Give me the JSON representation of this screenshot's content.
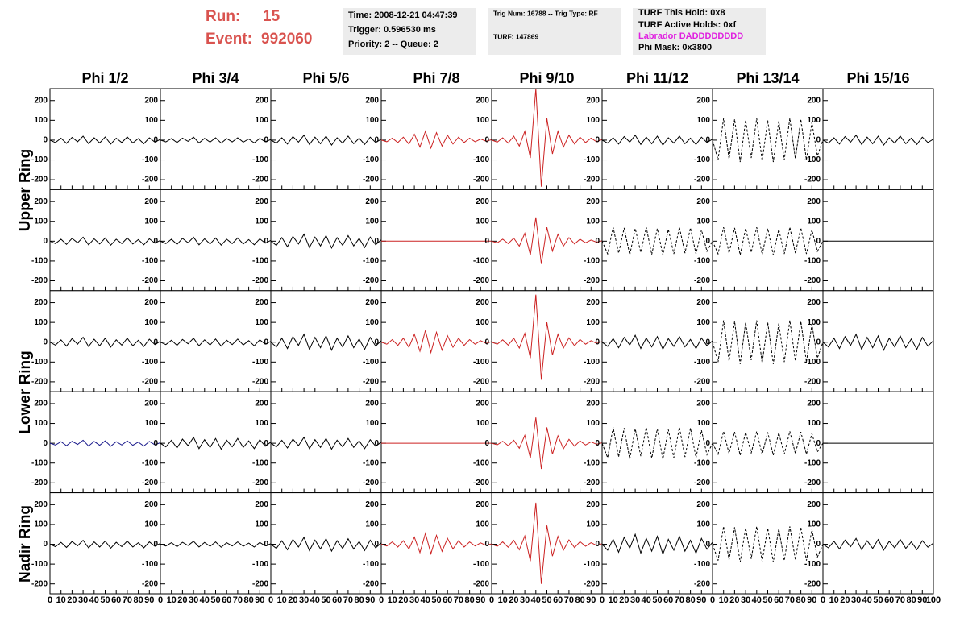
{
  "header": {
    "run_label": "Run:",
    "run": 15,
    "event_label": "Event:",
    "event": 992060,
    "box1": [
      "Time: 2008-12-21 04:47:39",
      "Trigger: 0.596530 ms",
      "Priority: 2 -- Queue: 2"
    ],
    "box2": [
      "Trig Num: 16788 -- Trig Type: RF",
      "TURF: 147869"
    ],
    "box3": [
      "TURF This Hold: 0x8",
      "TURF Active Holds: 0xf",
      "Labrador DADDDDDDDD",
      "Phi Mask: 0x3800"
    ]
  },
  "row_labels": [
    "Upper Ring",
    "Lower Ring",
    "Nadir Ring"
  ],
  "chart_data": {
    "type": "waveform-grid",
    "columns": [
      "Phi 1/2",
      "Phi 3/4",
      "Phi 5/6",
      "Phi 7/8",
      "Phi 9/10",
      "Phi 11/12",
      "Phi 13/14",
      "Phi 15/16"
    ],
    "xlim": [
      0,
      100
    ],
    "ylim": [
      -250,
      260
    ],
    "xticks": [
      0,
      10,
      20,
      30,
      40,
      50,
      60,
      70,
      80,
      90,
      100
    ],
    "yticks": [
      -200,
      -100,
      0,
      100,
      200
    ],
    "x": [
      0,
      5,
      10,
      15,
      20,
      25,
      30,
      35,
      40,
      45,
      50,
      55,
      60,
      65,
      70,
      75,
      80,
      85,
      90,
      95,
      100
    ],
    "panels": [
      {
        "color": "#000000",
        "dashed": false,
        "values": [
          0,
          -12,
          10,
          -16,
          14,
          -8,
          20,
          -18,
          12,
          -14,
          16,
          -20,
          10,
          -12,
          16,
          -14,
          8,
          -18,
          12,
          -10,
          4
        ]
      },
      {
        "color": "#000000",
        "dashed": false,
        "values": [
          0,
          -9,
          8,
          -12,
          10,
          -6,
          15,
          -14,
          9,
          -10,
          12,
          -15,
          8,
          -9,
          12,
          -10,
          6,
          -14,
          9,
          -8,
          3
        ]
      },
      {
        "color": "#000000",
        "dashed": false,
        "values": [
          0,
          -15,
          12,
          -20,
          18,
          -10,
          25,
          -22,
          15,
          -18,
          20,
          -25,
          12,
          -15,
          20,
          -18,
          10,
          -22,
          15,
          -12,
          5
        ]
      },
      {
        "color": "#cc2222",
        "dashed": false,
        "values": [
          0,
          -8,
          10,
          -12,
          15,
          -20,
          30,
          -35,
          45,
          -40,
          38,
          -30,
          25,
          -20,
          15,
          -12,
          10,
          -8,
          6,
          -5,
          2
        ]
      },
      {
        "color": "#cc2222",
        "dashed": false,
        "values": [
          0,
          -10,
          12,
          -15,
          20,
          -30,
          45,
          -90,
          260,
          -235,
          110,
          -70,
          45,
          -35,
          25,
          -20,
          15,
          -12,
          10,
          -8,
          3
        ]
      },
      {
        "color": "#000000",
        "dashed": false,
        "values": [
          0,
          -15,
          12,
          -20,
          18,
          -10,
          25,
          -22,
          15,
          -18,
          20,
          -25,
          12,
          -15,
          20,
          -18,
          10,
          -22,
          15,
          -12,
          5
        ]
      },
      {
        "color": "#000000",
        "dashed": true,
        "values": [
          0,
          -100,
          110,
          -95,
          105,
          -110,
          100,
          -90,
          110,
          -105,
          100,
          -110,
          95,
          -100,
          110,
          -95,
          105,
          -100,
          90,
          -80,
          0
        ]
      },
      {
        "color": "#000000",
        "dashed": false,
        "values": [
          0,
          -15,
          12,
          -20,
          18,
          -10,
          25,
          -22,
          15,
          -18,
          20,
          -25,
          12,
          -15,
          20,
          -18,
          10,
          -22,
          15,
          -12,
          5
        ]
      },
      {
        "color": "#000000",
        "dashed": false,
        "values": [
          0,
          -12,
          10,
          -16,
          14,
          -8,
          20,
          -18,
          12,
          -14,
          16,
          -20,
          10,
          -12,
          16,
          -14,
          8,
          -18,
          12,
          -10,
          4
        ]
      },
      {
        "color": "#000000",
        "dashed": false,
        "values": [
          0,
          -12,
          10,
          -16,
          14,
          -8,
          20,
          -18,
          12,
          -14,
          16,
          -20,
          10,
          -12,
          16,
          -14,
          8,
          -18,
          12,
          -10,
          4
        ]
      },
      {
        "color": "#000000",
        "dashed": false,
        "values": [
          0,
          -21,
          18,
          -28,
          24,
          -14,
          35,
          -32,
          21,
          -24,
          28,
          -35,
          18,
          -21,
          28,
          -24,
          14,
          -32,
          21,
          -18,
          7
        ]
      },
      {
        "color": "#cc2222",
        "dashed": false,
        "values": [
          0,
          0,
          0,
          0,
          0,
          0,
          0,
          0,
          0,
          0,
          0,
          0,
          0,
          0,
          0,
          0,
          0,
          0,
          0,
          0,
          0
        ]
      },
      {
        "color": "#cc2222",
        "dashed": false,
        "values": [
          0,
          -8,
          10,
          -12,
          15,
          -25,
          40,
          -70,
          120,
          -115,
          70,
          -50,
          35,
          -25,
          18,
          -14,
          10,
          -8,
          6,
          -5,
          2
        ]
      },
      {
        "color": "#000000",
        "dashed": true,
        "values": [
          0,
          -64,
          70,
          -60,
          67,
          -70,
          64,
          -57,
          70,
          -67,
          64,
          -70,
          60,
          -64,
          70,
          -60,
          67,
          -64,
          57,
          -51,
          0
        ]
      },
      {
        "color": "#000000",
        "dashed": true,
        "values": [
          0,
          -64,
          70,
          -60,
          67,
          -70,
          64,
          -57,
          70,
          -67,
          64,
          -70,
          60,
          -64,
          70,
          -60,
          67,
          -64,
          57,
          -51,
          0
        ]
      },
      {
        "color": "#000000",
        "dashed": false,
        "values": [
          0,
          0,
          0,
          0,
          0,
          0,
          0,
          0,
          0,
          0,
          0,
          0,
          0,
          0,
          0,
          0,
          0,
          0,
          0,
          0,
          0
        ]
      },
      {
        "color": "#000000",
        "dashed": false,
        "values": [
          0,
          -15,
          12,
          -20,
          18,
          -10,
          25,
          -22,
          15,
          -18,
          20,
          -25,
          12,
          -15,
          20,
          -18,
          10,
          -22,
          15,
          -12,
          5
        ]
      },
      {
        "color": "#000000",
        "dashed": false,
        "values": [
          0,
          -12,
          10,
          -16,
          14,
          -8,
          20,
          -18,
          12,
          -14,
          16,
          -20,
          10,
          -12,
          16,
          -14,
          8,
          -18,
          12,
          -10,
          4
        ]
      },
      {
        "color": "#000000",
        "dashed": false,
        "values": [
          0,
          -24,
          20,
          -32,
          28,
          -16,
          40,
          -36,
          24,
          -28,
          32,
          -40,
          20,
          -24,
          32,
          -28,
          16,
          -36,
          24,
          -20,
          8
        ]
      },
      {
        "color": "#cc2222",
        "dashed": false,
        "values": [
          0,
          -10,
          13,
          -16,
          20,
          -26,
          40,
          -46,
          60,
          -52,
          50,
          -40,
          33,
          -26,
          20,
          -16,
          13,
          -10,
          8,
          -6,
          3
        ]
      },
      {
        "color": "#cc2222",
        "dashed": false,
        "values": [
          0,
          -10,
          12,
          -15,
          20,
          -30,
          45,
          -80,
          240,
          -190,
          100,
          -65,
          40,
          -30,
          22,
          -18,
          14,
          -10,
          8,
          -6,
          3
        ]
      },
      {
        "color": "#000000",
        "dashed": false,
        "values": [
          0,
          -21,
          18,
          -28,
          24,
          -14,
          35,
          -32,
          21,
          -24,
          28,
          -35,
          18,
          -21,
          28,
          -24,
          14,
          -32,
          21,
          -18,
          7
        ]
      },
      {
        "color": "#000000",
        "dashed": true,
        "values": [
          0,
          -100,
          110,
          -95,
          105,
          -110,
          100,
          -90,
          110,
          -105,
          100,
          -110,
          95,
          -100,
          110,
          -95,
          105,
          -100,
          90,
          -80,
          0
        ]
      },
      {
        "color": "#000000",
        "dashed": false,
        "values": [
          0,
          -24,
          20,
          -32,
          28,
          -16,
          40,
          -36,
          24,
          -28,
          32,
          -40,
          20,
          -24,
          32,
          -28,
          16,
          -36,
          24,
          -20,
          8
        ]
      },
      {
        "color": "#1a1a8c",
        "dashed": false,
        "values": [
          0,
          -9,
          8,
          -12,
          10,
          -6,
          15,
          -14,
          9,
          -10,
          12,
          -15,
          8,
          -9,
          12,
          -10,
          6,
          -14,
          9,
          -8,
          3
        ]
      },
      {
        "color": "#000000",
        "dashed": false,
        "values": [
          0,
          -18,
          15,
          -24,
          21,
          -12,
          30,
          -27,
          18,
          -21,
          24,
          -30,
          15,
          -18,
          24,
          -21,
          12,
          -27,
          18,
          -15,
          6
        ]
      },
      {
        "color": "#000000",
        "dashed": false,
        "values": [
          0,
          -18,
          15,
          -24,
          21,
          -12,
          30,
          -27,
          18,
          -21,
          24,
          -30,
          15,
          -18,
          24,
          -21,
          12,
          -27,
          18,
          -15,
          6
        ]
      },
      {
        "color": "#cc2222",
        "dashed": false,
        "values": [
          0,
          0,
          0,
          0,
          0,
          0,
          0,
          0,
          0,
          0,
          0,
          0,
          0,
          0,
          0,
          0,
          0,
          0,
          0,
          0,
          0
        ]
      },
      {
        "color": "#cc2222",
        "dashed": false,
        "values": [
          0,
          -8,
          10,
          -12,
          15,
          -25,
          40,
          -75,
          130,
          -130,
          80,
          -55,
          38,
          -28,
          20,
          -15,
          12,
          -9,
          7,
          -5,
          2
        ]
      },
      {
        "color": "#000000",
        "dashed": true,
        "values": [
          0,
          -73,
          80,
          -69,
          76,
          -80,
          73,
          -65,
          80,
          -76,
          73,
          -80,
          69,
          -73,
          80,
          -69,
          76,
          -73,
          65,
          -58,
          0
        ]
      },
      {
        "color": "#000000",
        "dashed": true,
        "values": [
          0,
          -55,
          60,
          -52,
          57,
          -60,
          55,
          -49,
          60,
          -57,
          55,
          -60,
          52,
          -55,
          60,
          -52,
          57,
          -55,
          49,
          -44,
          0
        ]
      },
      {
        "color": "#000000",
        "dashed": false,
        "values": [
          0,
          0,
          0,
          0,
          0,
          0,
          0,
          0,
          0,
          0,
          0,
          0,
          0,
          0,
          0,
          0,
          0,
          0,
          0,
          0,
          0
        ]
      },
      {
        "color": "#000000",
        "dashed": false,
        "values": [
          0,
          -12,
          10,
          -16,
          14,
          -8,
          20,
          -18,
          12,
          -14,
          16,
          -20,
          10,
          -12,
          16,
          -14,
          8,
          -18,
          12,
          -10,
          4
        ]
      },
      {
        "color": "#000000",
        "dashed": false,
        "values": [
          0,
          -9,
          8,
          -12,
          10,
          -6,
          15,
          -14,
          9,
          -10,
          12,
          -15,
          8,
          -9,
          12,
          -10,
          6,
          -14,
          9,
          -8,
          3
        ]
      },
      {
        "color": "#000000",
        "dashed": false,
        "values": [
          0,
          -21,
          18,
          -28,
          24,
          -14,
          35,
          -32,
          21,
          -24,
          28,
          -35,
          18,
          -21,
          28,
          -24,
          14,
          -32,
          21,
          -18,
          7
        ]
      },
      {
        "color": "#cc2222",
        "dashed": false,
        "values": [
          0,
          -9,
          12,
          -14,
          18,
          -24,
          36,
          -42,
          55,
          -48,
          45,
          -36,
          30,
          -24,
          18,
          -14,
          12,
          -9,
          7,
          -6,
          2
        ]
      },
      {
        "color": "#cc2222",
        "dashed": false,
        "values": [
          0,
          -10,
          12,
          -15,
          20,
          -28,
          42,
          -85,
          210,
          -200,
          95,
          -60,
          40,
          -30,
          22,
          -17,
          13,
          -10,
          8,
          -6,
          3
        ]
      },
      {
        "color": "#000000",
        "dashed": false,
        "values": [
          0,
          -30,
          25,
          -40,
          35,
          -20,
          50,
          -45,
          30,
          -35,
          40,
          -50,
          25,
          -30,
          40,
          -35,
          20,
          -45,
          30,
          -25,
          10
        ]
      },
      {
        "color": "#000000",
        "dashed": true,
        "values": [
          0,
          -82,
          90,
          -78,
          86,
          -90,
          82,
          -74,
          90,
          -86,
          82,
          -90,
          78,
          -82,
          90,
          -78,
          86,
          -82,
          74,
          -65,
          0
        ]
      },
      {
        "color": "#000000",
        "dashed": false,
        "values": [
          0,
          -18,
          15,
          -24,
          21,
          -12,
          30,
          -27,
          18,
          -21,
          24,
          -30,
          15,
          -18,
          24,
          -21,
          12,
          -27,
          18,
          -15,
          6
        ]
      }
    ]
  }
}
